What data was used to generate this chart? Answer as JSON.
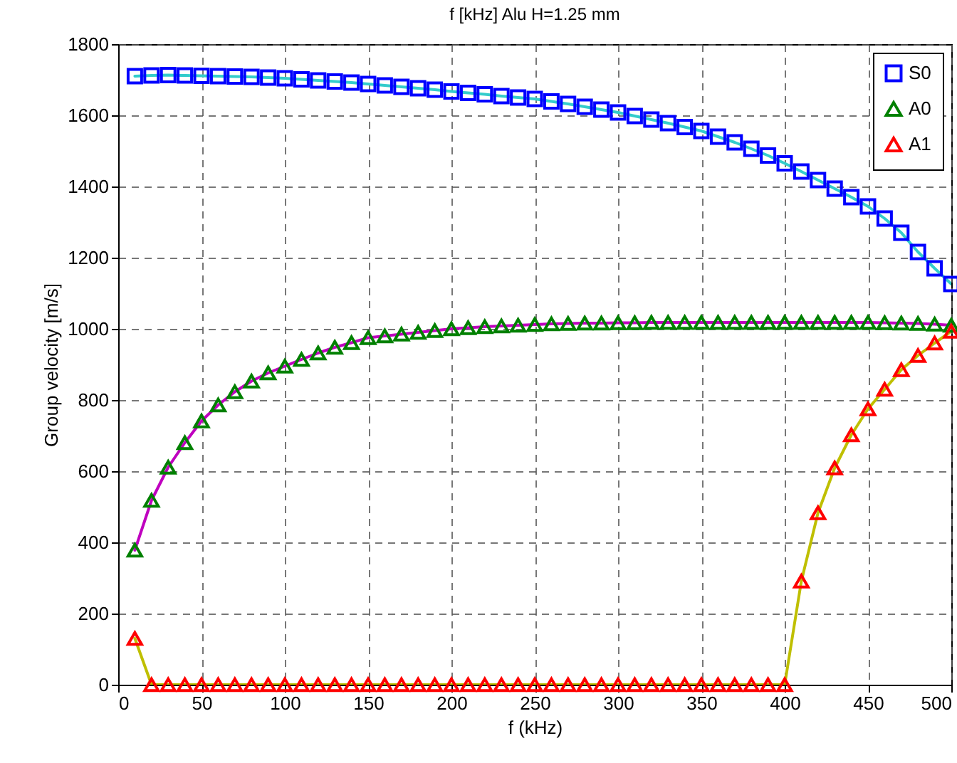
{
  "chart_data": {
    "type": "line",
    "title": "f [kHz]  Alu H=1.25 mm",
    "xlabel": "f (kHz)",
    "ylabel": "Group velocity  [m/s]",
    "x": [
      10,
      20,
      30,
      40,
      50,
      60,
      70,
      80,
      90,
      100,
      110,
      120,
      130,
      140,
      150,
      160,
      170,
      180,
      190,
      200,
      210,
      220,
      230,
      240,
      250,
      260,
      270,
      280,
      290,
      300,
      310,
      320,
      330,
      340,
      350,
      360,
      370,
      380,
      390,
      400,
      410,
      420,
      430,
      440,
      450,
      460,
      470,
      480,
      490,
      500
    ],
    "xlim": [
      0,
      500
    ],
    "xticks": [
      0,
      50,
      100,
      150,
      200,
      250,
      300,
      350,
      400,
      450,
      500
    ],
    "ylim": [
      0,
      1800
    ],
    "yticks": [
      0,
      200,
      400,
      600,
      800,
      1000,
      1200,
      1400,
      1600,
      1800
    ],
    "grid": true,
    "legend": "top right",
    "series": [
      {
        "color": "#33cccc",
        "values": [
          1710,
          1712,
          1713,
          1712,
          1711,
          1710,
          1709,
          1708,
          1706,
          1704,
          1701,
          1698,
          1695,
          1692,
          1688,
          1684,
          1680,
          1676,
          1672,
          1667,
          1663,
          1659,
          1654,
          1650,
          1646,
          1639,
          1632,
          1624,
          1616,
          1608,
          1598,
          1588,
          1578,
          1567,
          1556,
          1540,
          1524,
          1506,
          1487,
          1465,
          1442,
          1418,
          1394,
          1370,
          1344,
          1310,
          1270,
          1216,
          1170,
          1126
        ]
      },
      {
        "color": "#bf00bf",
        "values": [
          378,
          518,
          611,
          680,
          741,
          786,
          823,
          853,
          876,
          895,
          914,
          932,
          948,
          961,
          975,
          980,
          985,
          990,
          995,
          1000,
          1003,
          1006,
          1008,
          1010,
          1012,
          1014,
          1015,
          1016,
          1016,
          1017,
          1017,
          1018,
          1018,
          1018,
          1018,
          1018,
          1018,
          1018,
          1018,
          1018,
          1018,
          1018,
          1018,
          1018,
          1018,
          1017,
          1016,
          1015,
          1013,
          1010
        ]
      },
      {
        "color": "#bfbf00",
        "values": [
          130,
          0,
          0,
          0,
          0,
          0,
          0,
          0,
          0,
          0,
          0,
          0,
          0,
          0,
          0,
          0,
          0,
          0,
          0,
          0,
          0,
          0,
          0,
          0,
          0,
          0,
          0,
          0,
          0,
          0,
          0,
          0,
          0,
          0,
          0,
          0,
          0,
          0,
          0,
          0,
          291,
          483,
          609,
          702,
          775,
          830,
          885,
          925,
          960,
          993
        ]
      },
      {
        "type": "scatter",
        "name": "S0",
        "color": "#0000ff",
        "marker": "square",
        "values": [
          1710,
          1712,
          1713,
          1712,
          1711,
          1710,
          1709,
          1708,
          1706,
          1704,
          1701,
          1698,
          1695,
          1692,
          1688,
          1684,
          1680,
          1676,
          1672,
          1667,
          1663,
          1659,
          1654,
          1650,
          1646,
          1639,
          1632,
          1624,
          1616,
          1608,
          1598,
          1588,
          1578,
          1567,
          1556,
          1540,
          1524,
          1506,
          1487,
          1465,
          1442,
          1418,
          1394,
          1370,
          1344,
          1310,
          1270,
          1216,
          1170,
          1126
        ]
      },
      {
        "type": "scatter",
        "name": "A0",
        "color": "#008000",
        "marker": "triangle",
        "values": [
          378,
          518,
          611,
          680,
          741,
          786,
          823,
          853,
          876,
          895,
          914,
          932,
          948,
          961,
          975,
          980,
          985,
          990,
          995,
          1000,
          1003,
          1006,
          1008,
          1010,
          1012,
          1014,
          1015,
          1016,
          1016,
          1017,
          1017,
          1018,
          1018,
          1018,
          1018,
          1018,
          1018,
          1018,
          1018,
          1018,
          1018,
          1018,
          1018,
          1018,
          1018,
          1017,
          1016,
          1015,
          1013,
          1010
        ]
      },
      {
        "type": "scatter",
        "name": "A1",
        "color": "#ff0000",
        "marker": "triangle",
        "values": [
          130,
          0,
          0,
          0,
          0,
          0,
          0,
          0,
          0,
          0,
          0,
          0,
          0,
          0,
          0,
          0,
          0,
          0,
          0,
          0,
          0,
          0,
          0,
          0,
          0,
          0,
          0,
          0,
          0,
          0,
          0,
          0,
          0,
          0,
          0,
          0,
          0,
          0,
          0,
          0,
          291,
          483,
          609,
          702,
          775,
          830,
          885,
          925,
          960,
          993
        ]
      }
    ]
  }
}
